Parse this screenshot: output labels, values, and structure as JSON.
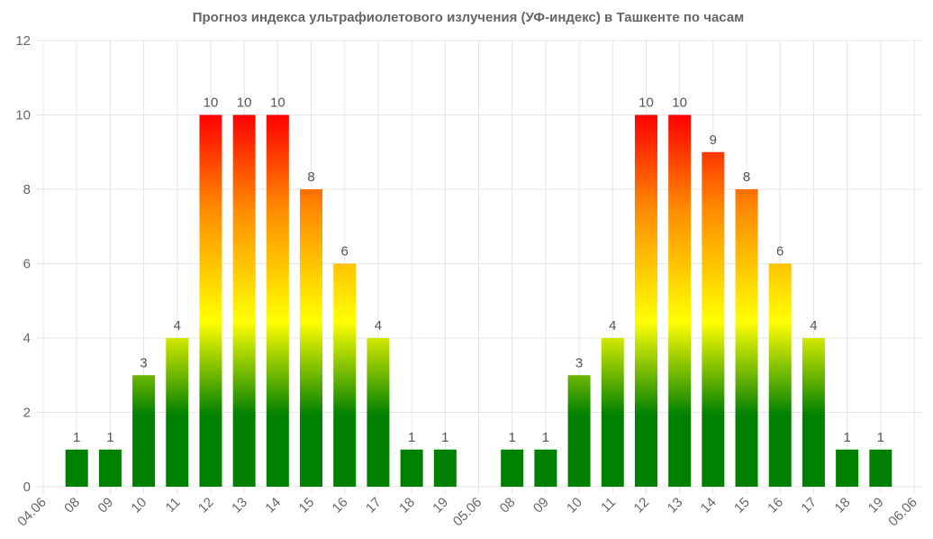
{
  "chart_data": {
    "type": "bar",
    "title": "Прогноз индекса ультрафиолетового излучения (УФ-индекс) в Ташкенте по часам",
    "xlabel": "",
    "ylabel": "",
    "ylim": [
      0,
      12
    ],
    "yticks": [
      0,
      2,
      4,
      6,
      8,
      10,
      12
    ],
    "grid": true,
    "legend": "none",
    "categories": [
      "04.06",
      "08",
      "09",
      "10",
      "11",
      "12",
      "13",
      "14",
      "15",
      "16",
      "17",
      "18",
      "19",
      "05.06",
      "08",
      "09",
      "10",
      "11",
      "12",
      "13",
      "14",
      "15",
      "16",
      "17",
      "18",
      "19",
      "06.06"
    ],
    "values": [
      null,
      1,
      1,
      3,
      4,
      10,
      10,
      10,
      8,
      6,
      4,
      1,
      1,
      null,
      1,
      1,
      3,
      4,
      10,
      10,
      9,
      8,
      6,
      4,
      1,
      1,
      null
    ],
    "colors": {
      "low": "#008000",
      "moderate": "#ffff00",
      "high": "#ff8c00",
      "very_high": "#ff0000",
      "grid": "#e6e6e6",
      "text": "#666666"
    }
  }
}
